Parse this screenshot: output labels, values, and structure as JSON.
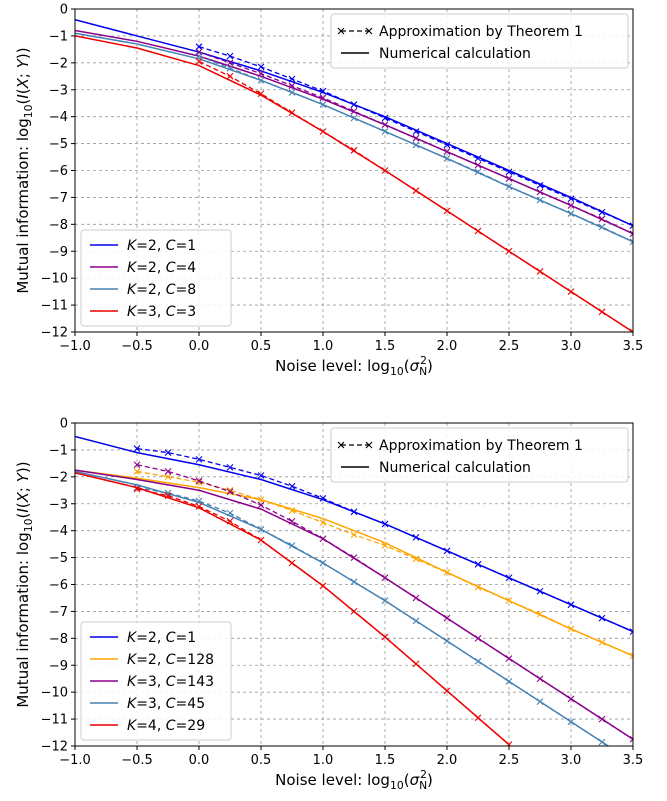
{
  "chart_data": [
    {
      "type": "line",
      "xlabel": "Noise level: log10(σN²)",
      "ylabel": "Mutual information: log10(I(X; Y))",
      "xlim": [
        -1.0,
        3.5
      ],
      "ylim": [
        -12,
        0
      ],
      "xticks": [
        "−1.0",
        "−0.5",
        "0.0",
        "0.5",
        "1.0",
        "1.5",
        "2.0",
        "2.5",
        "3.0",
        "3.5"
      ],
      "yticks": [
        "0",
        "−1",
        "−2",
        "−3",
        "−4",
        "−5",
        "−6",
        "−7",
        "−8",
        "−9",
        "−10",
        "−11",
        "−12"
      ],
      "grid": true,
      "style_legend": {
        "placement": "top-right",
        "entries": [
          {
            "label": "Approximation by Theorem 1",
            "style": "dashed-x"
          },
          {
            "label": "Numerical calculation",
            "style": "solid"
          }
        ]
      },
      "series_legend_placement": "lower-left",
      "series": [
        {
          "name": "K=2, C=1",
          "color": "#0000ee",
          "numerical": {
            "x": [
              -1.0,
              -0.5,
              0.0,
              0.5,
              1.0,
              1.5,
              2.0,
              2.5,
              3.0,
              3.5
            ],
            "y": [
              -0.4,
              -1.0,
              -1.6,
              -2.3,
              -3.1,
              -4.0,
              -5.0,
              -6.0,
              -7.0,
              -8.05
            ]
          },
          "approx": {
            "x": [
              0.0,
              0.25,
              0.5,
              0.75,
              1.0,
              1.25,
              1.5,
              1.75,
              2.0,
              2.25,
              2.5,
              2.75,
              3.0,
              3.25,
              3.5
            ],
            "y": [
              -1.4,
              -1.75,
              -2.15,
              -2.6,
              -3.05,
              -3.55,
              -4.05,
              -4.55,
              -5.05,
              -5.55,
              -6.05,
              -6.55,
              -7.05,
              -7.55,
              -8.05
            ]
          }
        },
        {
          "name": "K=2, C=4",
          "color": "#8b008b",
          "numerical": {
            "x": [
              -1.0,
              -0.5,
              0.0,
              0.5,
              1.0,
              1.5,
              2.0,
              2.5,
              3.0,
              3.5
            ],
            "y": [
              -0.8,
              -1.2,
              -1.75,
              -2.5,
              -3.35,
              -4.3,
              -5.3,
              -6.3,
              -7.3,
              -8.35
            ]
          },
          "approx": {
            "x": [
              0.0,
              0.25,
              0.5,
              0.75,
              1.0,
              1.25,
              1.5,
              1.75,
              2.0,
              2.25,
              2.5,
              2.75,
              3.0,
              3.25,
              3.5
            ],
            "y": [
              -1.6,
              -2.0,
              -2.4,
              -2.85,
              -3.3,
              -3.8,
              -4.3,
              -4.8,
              -5.3,
              -5.8,
              -6.3,
              -6.8,
              -7.3,
              -7.8,
              -8.35
            ]
          }
        },
        {
          "name": "K=2, C=8",
          "color": "#4682b4",
          "numerical": {
            "x": [
              -1.0,
              -0.5,
              0.0,
              0.5,
              1.0,
              1.5,
              2.0,
              2.5,
              3.0,
              3.5
            ],
            "y": [
              -0.9,
              -1.3,
              -1.85,
              -2.65,
              -3.55,
              -4.55,
              -5.55,
              -6.6,
              -7.6,
              -8.65
            ]
          },
          "approx": {
            "x": [
              0.0,
              0.25,
              0.5,
              0.75,
              1.0,
              1.25,
              1.5,
              1.75,
              2.0,
              2.25,
              2.5,
              2.75,
              3.0,
              3.25,
              3.5
            ],
            "y": [
              -1.75,
              -2.2,
              -2.65,
              -3.1,
              -3.55,
              -4.05,
              -4.55,
              -5.05,
              -5.55,
              -6.05,
              -6.6,
              -7.1,
              -7.6,
              -8.1,
              -8.65
            ]
          }
        },
        {
          "name": "K=3, C=3",
          "color": "#ee0000",
          "numerical": {
            "x": [
              -1.0,
              -0.5,
              0.0,
              0.5,
              1.0,
              1.5,
              2.0,
              2.5,
              3.0,
              3.5
            ],
            "y": [
              -1.0,
              -1.45,
              -2.1,
              -3.2,
              -4.55,
              -6.0,
              -7.5,
              -9.0,
              -10.5,
              -12.0
            ]
          },
          "approx": {
            "x": [
              0.0,
              0.25,
              0.5,
              0.75,
              1.0,
              1.25,
              1.5,
              1.75,
              2.0,
              2.25,
              2.5,
              2.75,
              3.0,
              3.25,
              3.5
            ],
            "y": [
              -1.95,
              -2.5,
              -3.15,
              -3.85,
              -4.55,
              -5.25,
              -6.0,
              -6.75,
              -7.5,
              -8.25,
              -9.0,
              -9.75,
              -10.5,
              -11.25,
              -12.0
            ]
          }
        }
      ]
    },
    {
      "type": "line",
      "xlabel": "Noise level: log10(σN²)",
      "ylabel": "Mutual information: log10(I(X; Y))",
      "xlim": [
        -1.0,
        3.5
      ],
      "ylim": [
        -12,
        0
      ],
      "xticks": [
        "−1.0",
        "−0.5",
        "0.0",
        "0.5",
        "1.0",
        "1.5",
        "2.0",
        "2.5",
        "3.0",
        "3.5"
      ],
      "yticks": [
        "0",
        "−1",
        "−2",
        "−3",
        "−4",
        "−5",
        "−6",
        "−7",
        "−8",
        "−9",
        "−10",
        "−11",
        "−12"
      ],
      "grid": true,
      "style_legend": {
        "placement": "top-right",
        "entries": [
          {
            "label": "Approximation by Theorem 1",
            "style": "dashed-x"
          },
          {
            "label": "Numerical calculation",
            "style": "solid"
          }
        ]
      },
      "series_legend_placement": "lower-left",
      "series": [
        {
          "name": "K=2, C=1",
          "color": "#0000ee",
          "numerical": {
            "x": [
              -1.0,
              -0.5,
              0.0,
              0.5,
              1.0,
              1.5,
              2.0,
              2.5,
              3.0,
              3.5
            ],
            "y": [
              -0.5,
              -1.1,
              -1.55,
              -2.1,
              -2.85,
              -3.75,
              -4.75,
              -5.75,
              -6.75,
              -7.75
            ]
          },
          "approx": {
            "x": [
              -0.5,
              -0.25,
              0.0,
              0.25,
              0.5,
              0.75,
              1.0,
              1.25,
              1.5,
              1.75,
              2.0,
              2.25,
              2.5,
              2.75,
              3.0,
              3.25,
              3.5
            ],
            "y": [
              -0.95,
              -1.1,
              -1.35,
              -1.65,
              -1.95,
              -2.35,
              -2.8,
              -3.3,
              -3.75,
              -4.25,
              -4.75,
              -5.25,
              -5.75,
              -6.25,
              -6.75,
              -7.25,
              -7.75
            ]
          }
        },
        {
          "name": "K=2, C=128",
          "color": "#ffa500",
          "numerical": {
            "x": [
              -1.0,
              -0.5,
              0.0,
              0.5,
              1.0,
              1.5,
              2.0,
              2.5,
              3.0,
              3.5
            ],
            "y": [
              -1.75,
              -2.05,
              -2.4,
              -2.85,
              -3.55,
              -4.45,
              -5.55,
              -6.6,
              -7.65,
              -8.65
            ]
          },
          "approx": {
            "x": [
              -0.5,
              -0.25,
              0.0,
              0.25,
              0.5,
              0.75,
              1.0,
              1.25,
              1.5,
              1.75,
              2.0,
              2.25,
              2.5,
              2.75,
              3.0,
              3.25,
              3.5
            ],
            "y": [
              -1.8,
              -2.0,
              -2.2,
              -2.5,
              -2.85,
              -3.25,
              -3.7,
              -4.15,
              -4.55,
              -5.05,
              -5.55,
              -6.1,
              -6.6,
              -7.1,
              -7.65,
              -8.15,
              -8.65
            ]
          }
        },
        {
          "name": "K=3, C=143",
          "color": "#8b008b",
          "numerical": {
            "x": [
              -1.0,
              -0.5,
              0.0,
              0.5,
              1.0,
              1.5,
              2.0,
              2.5,
              3.0,
              3.5
            ],
            "y": [
              -1.75,
              -2.1,
              -2.5,
              -3.2,
              -4.3,
              -5.75,
              -7.25,
              -8.75,
              -10.25,
              -11.75
            ]
          },
          "approx": {
            "x": [
              -0.5,
              -0.25,
              0.0,
              0.25,
              0.5,
              0.75,
              1.0,
              1.25,
              1.5,
              1.75,
              2.0,
              2.25,
              2.5,
              2.75,
              3.0,
              3.25,
              3.5
            ],
            "y": [
              -1.55,
              -1.8,
              -2.15,
              -2.55,
              -3.05,
              -3.65,
              -4.3,
              -5.0,
              -5.75,
              -6.5,
              -7.25,
              -8.0,
              -8.75,
              -9.5,
              -10.25,
              -11.0,
              -11.75
            ]
          }
        },
        {
          "name": "K=3, C=45",
          "color": "#4682b4",
          "numerical": {
            "x": [
              -1.0,
              -0.5,
              0.0,
              0.5,
              1.0,
              1.5,
              2.0,
              2.5,
              3.0,
              3.5
            ],
            "y": [
              -1.8,
              -2.3,
              -2.95,
              -3.95,
              -5.2,
              -6.6,
              -8.1,
              -9.6,
              -11.1,
              -12.6
            ]
          },
          "approx": {
            "x": [
              -0.5,
              -0.25,
              0.0,
              0.25,
              0.5,
              0.75,
              1.0,
              1.25,
              1.5,
              1.75,
              2.0,
              2.25,
              2.5,
              2.75,
              3.0,
              3.25
            ],
            "y": [
              -2.4,
              -2.6,
              -2.9,
              -3.35,
              -3.95,
              -4.55,
              -5.2,
              -5.9,
              -6.6,
              -7.35,
              -8.1,
              -8.85,
              -9.6,
              -10.35,
              -11.1,
              -11.85
            ]
          }
        },
        {
          "name": "K=4, C=29",
          "color": "#ee0000",
          "numerical": {
            "x": [
              -1.0,
              -0.5,
              0.0,
              0.5,
              1.0,
              1.5,
              2.0,
              2.5
            ],
            "y": [
              -1.85,
              -2.4,
              -3.15,
              -4.35,
              -6.05,
              -7.95,
              -9.95,
              -11.95
            ]
          },
          "approx": {
            "x": [
              -0.5,
              -0.25,
              0.0,
              0.25,
              0.5,
              0.75,
              1.0,
              1.25,
              1.5,
              1.75,
              2.0,
              2.25,
              2.5
            ],
            "y": [
              -2.45,
              -2.7,
              -3.1,
              -3.65,
              -4.35,
              -5.2,
              -6.05,
              -7.0,
              -7.95,
              -8.95,
              -9.95,
              -10.95,
              -11.95
            ]
          }
        }
      ]
    }
  ]
}
